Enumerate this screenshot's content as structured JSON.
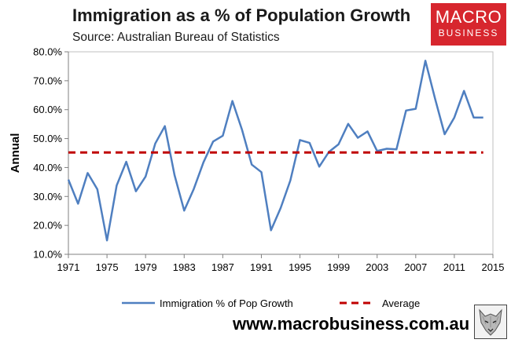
{
  "header": {
    "title": "Immigration as a % of Population Growth",
    "subtitle": "Source: Australian Bureau of Statistics"
  },
  "logo": {
    "line1": "MACRO",
    "line2": "BUSINESS",
    "bg_color": "#d7262e"
  },
  "footer": {
    "website": "www.macrobusiness.com.au",
    "wolf_icon": "wolf-head-icon"
  },
  "chart_data": {
    "type": "line",
    "title": "Immigration as a % of Population Growth",
    "subtitle": "Source: Australian Bureau of Statistics",
    "xlabel": "",
    "ylabel": "Annual",
    "xlim": [
      1971,
      2015
    ],
    "ylim": [
      10,
      80
    ],
    "xticks": [
      1971,
      1975,
      1979,
      1983,
      1987,
      1991,
      1995,
      1999,
      2003,
      2007,
      2011,
      2015
    ],
    "yticks": [
      10,
      20,
      30,
      40,
      50,
      60,
      70,
      80
    ],
    "ytick_labels": [
      "10.0%",
      "20.0%",
      "30.0%",
      "40.0%",
      "50.0%",
      "60.0%",
      "70.0%",
      "80.0%"
    ],
    "grid": false,
    "legend_position": "bottom",
    "series": [
      {
        "name": "Immigration % of Pop Growth",
        "color": "#4f7fc0",
        "style": "solid",
        "x": [
          1971,
          1972,
          1973,
          1974,
          1975,
          1976,
          1977,
          1978,
          1979,
          1980,
          1981,
          1982,
          1983,
          1984,
          1985,
          1986,
          1987,
          1988,
          1989,
          1990,
          1991,
          1992,
          1993,
          1994,
          1995,
          1996,
          1997,
          1998,
          1999,
          2000,
          2001,
          2002,
          2003,
          2004,
          2005,
          2006,
          2007,
          2008,
          2009,
          2010,
          2011,
          2012,
          2013,
          2014
        ],
        "values": [
          35.8,
          27.5,
          38.1,
          32.5,
          14.8,
          33.8,
          42.0,
          31.8,
          36.9,
          48.3,
          54.3,
          37.4,
          25.1,
          32.6,
          41.8,
          49.0,
          51.0,
          63.0,
          53.0,
          41.0,
          38.4,
          18.3,
          26.0,
          35.5,
          49.5,
          48.5,
          40.3,
          45.4,
          48.0,
          55.1,
          50.3,
          52.5,
          45.7,
          46.5,
          46.3,
          59.7,
          60.3,
          76.9,
          63.8,
          51.5,
          57.3,
          66.5,
          57.3,
          57.3
        ]
      },
      {
        "name": "Average",
        "color": "#c00000",
        "style": "dashed",
        "x": [
          1971,
          2014
        ],
        "values": [
          45.2,
          45.2
        ]
      }
    ]
  }
}
